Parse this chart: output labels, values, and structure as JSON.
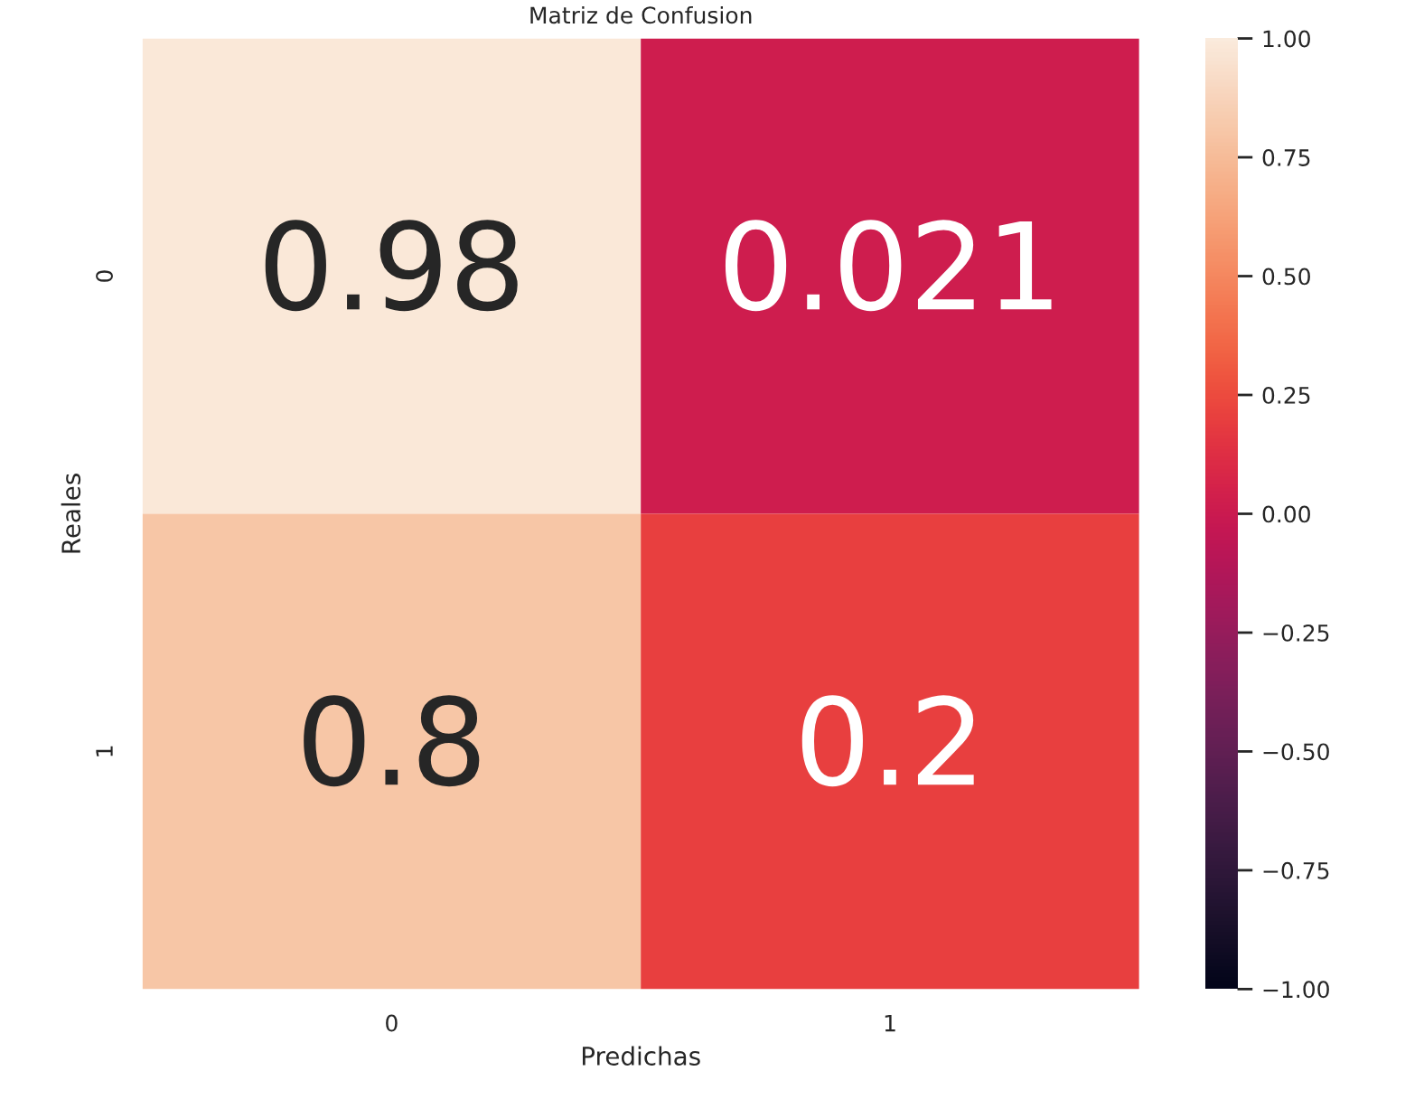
{
  "chart_data": {
    "type": "heatmap",
    "title": "Matriz de Confusion",
    "xlabel": "Predichas",
    "ylabel": "Reales",
    "categories": [
      "0",
      "1"
    ],
    "y_categories": [
      "0",
      "1"
    ],
    "cells": [
      [
        0.98,
        0.021
      ],
      [
        0.8,
        0.2
      ]
    ],
    "data_labels": true,
    "clim": [
      -1,
      1
    ],
    "cticks": [
      {
        "value": -1,
        "label": "−1.00"
      },
      {
        "value": -0.75,
        "label": "−0.75"
      },
      {
        "value": -0.5,
        "label": "−0.50"
      },
      {
        "value": -0.25,
        "label": "−0.25"
      },
      {
        "value": 0,
        "label": "0.00"
      },
      {
        "value": 0.25,
        "label": "0.25"
      },
      {
        "value": 0.5,
        "label": "0.50"
      },
      {
        "value": 0.75,
        "label": "0.75"
      },
      {
        "value": 1,
        "label": "1.00"
      }
    ]
  }
}
